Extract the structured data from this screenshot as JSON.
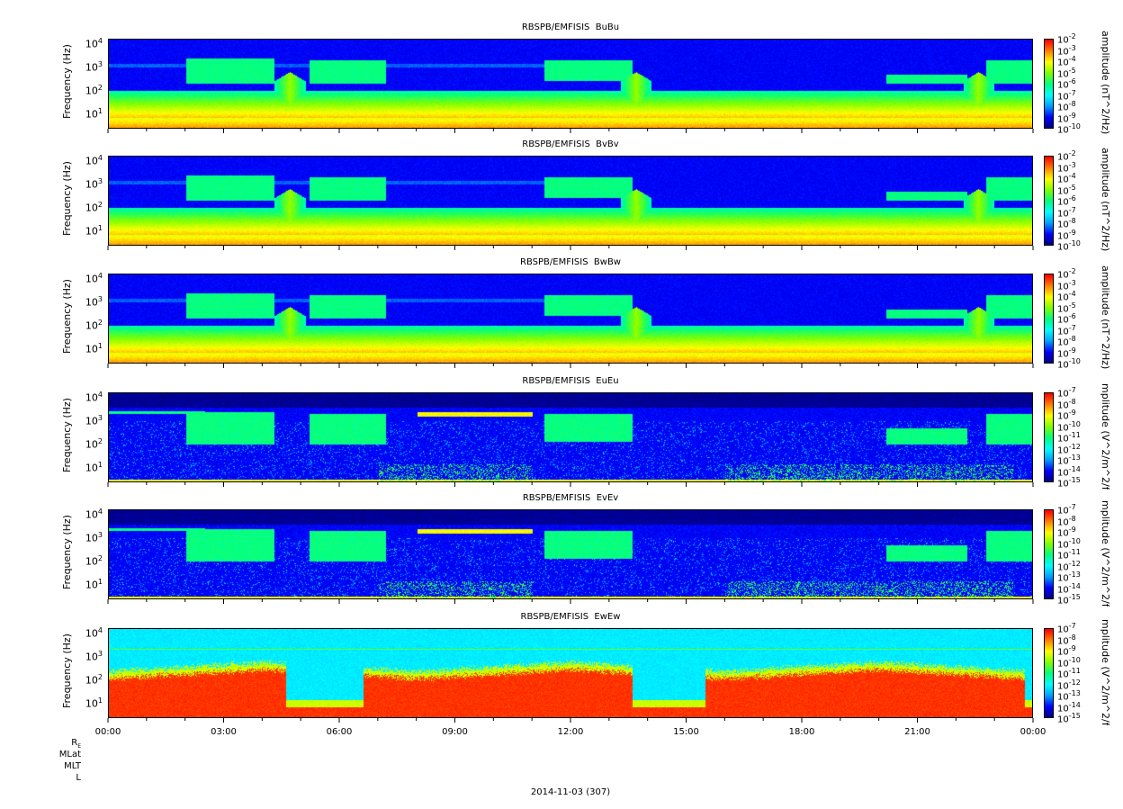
{
  "chart_data": {
    "type": "heatmap",
    "x_axis": {
      "tick_labels": [
        "00:00",
        "03:00",
        "06:00",
        "09:00",
        "12:00",
        "15:00",
        "18:00",
        "21:00",
        "00:00"
      ],
      "date_label": "2014-11-03 (307)",
      "extra_rows": [
        "R_E",
        "MLat",
        "MLT",
        "L"
      ]
    },
    "y_axis": {
      "label": "Frequency (Hz)",
      "scale": "log",
      "tick_exponents": [
        1,
        2,
        3,
        4
      ]
    },
    "colormap": [
      "#000080",
      "#0000ff",
      "#00a0ff",
      "#00ffff",
      "#00ff80",
      "#80ff00",
      "#ffff00",
      "#ff8000",
      "#ff0000"
    ],
    "panels": [
      {
        "id": "BuBu",
        "title": "RBSPB/EMFISIS  BuBu",
        "zlabel": "amplitude (nT^2/Hz)",
        "zlim_exp": [
          -10,
          -2
        ],
        "kind": "B"
      },
      {
        "id": "BvBv",
        "title": "RBSPB/EMFISIS  BvBv",
        "zlabel": "amplitude (nT^2/Hz)",
        "zlim_exp": [
          -10,
          -2
        ],
        "kind": "B"
      },
      {
        "id": "BwBw",
        "title": "RBSPB/EMFISIS  BwBw",
        "zlabel": "amplitude (nT^2/Hz)",
        "zlim_exp": [
          -10,
          -2
        ],
        "kind": "B"
      },
      {
        "id": "EuEu",
        "title": "RBSPB/EMFISIS  EuEu",
        "zlabel": "mplitude (V^2/m^2/f",
        "zlim_exp": [
          -15,
          -7
        ],
        "kind": "E"
      },
      {
        "id": "EvEv",
        "title": "RBSPB/EMFISIS  EvEv",
        "zlabel": "mplitude (V^2/m^2/f",
        "zlim_exp": [
          -15,
          -7
        ],
        "kind": "E"
      },
      {
        "id": "EwEw",
        "title": "RBSPB/EMFISIS  EwEw",
        "zlabel": "mplitude (V^2/m^2/f",
        "zlim_exp": [
          -15,
          -7
        ],
        "kind": "Ew"
      }
    ]
  }
}
